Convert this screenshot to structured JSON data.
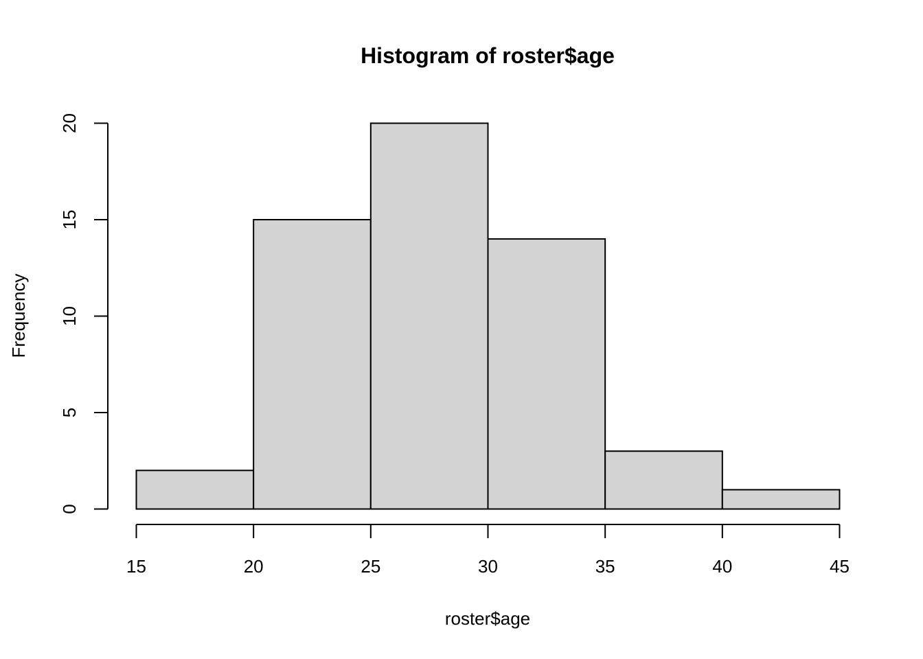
{
  "chart_data": {
    "type": "bar",
    "title": "Histogram of roster$age",
    "xlabel": "roster$age",
    "ylabel": "Frequency",
    "bins": [
      [
        15,
        20
      ],
      [
        20,
        25
      ],
      [
        25,
        30
      ],
      [
        30,
        35
      ],
      [
        35,
        40
      ],
      [
        40,
        45
      ]
    ],
    "values": [
      2,
      15,
      20,
      14,
      3,
      1
    ],
    "xticks": [
      15,
      20,
      25,
      30,
      35,
      40,
      45
    ],
    "yticks": [
      0,
      5,
      10,
      15,
      20
    ],
    "xlim": [
      15,
      45
    ],
    "ylim": [
      0,
      20
    ],
    "bar_color": "#d3d3d3",
    "edge_color": "#000000",
    "grid": false,
    "legend": "none"
  }
}
